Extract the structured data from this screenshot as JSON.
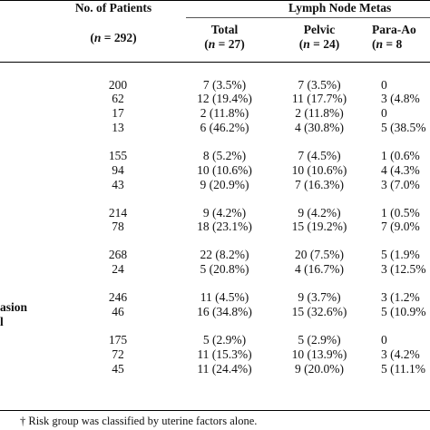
{
  "header": {
    "patients_title": "No. of Patients",
    "patients_n": "(n = 292)",
    "lnm_title": "Lymph Node Metas",
    "cols": [
      {
        "title": "Total",
        "n": "(n = 27)"
      },
      {
        "title": "Pelvic",
        "n": "(n = 24)"
      },
      {
        "title": "Para-Ao",
        "n": "(n = 8"
      }
    ]
  },
  "left_labels": [
    "asion",
    "l"
  ],
  "rows": [
    {
      "n": "200",
      "total": "7 (3.5%)",
      "pelvic": "7 (3.5%)",
      "para": "0"
    },
    {
      "n": "62",
      "total": "12 (19.4%)",
      "pelvic": "11 (17.7%)",
      "para": "3 (4.8%"
    },
    {
      "n": "17",
      "total": "2 (11.8%)",
      "pelvic": "2 (11.8%)",
      "para": "0"
    },
    {
      "n": "13",
      "total": "6 (46.2%)",
      "pelvic": "4 (30.8%)",
      "para": "5 (38.5%"
    },
    {
      "n": "155",
      "total": "8 (5.2%)",
      "pelvic": "7 (4.5%)",
      "para": "1 (0.6%"
    },
    {
      "n": "94",
      "total": "10 (10.6%)",
      "pelvic": "10 (10.6%)",
      "para": "4 (4.3%"
    },
    {
      "n": "43",
      "total": "9 (20.9%)",
      "pelvic": "7 (16.3%)",
      "para": "3 (7.0%"
    },
    {
      "n": "214",
      "total": "9 (4.2%)",
      "pelvic": "9 (4.2%)",
      "para": "1 (0.5%"
    },
    {
      "n": "78",
      "total": "18 (23.1%)",
      "pelvic": "15 (19.2%)",
      "para": "7 (9.0%"
    },
    {
      "n": "268",
      "total": "22 (8.2%)",
      "pelvic": "20 (7.5%)",
      "para": "5 (1.9%"
    },
    {
      "n": "24",
      "total": "5 (20.8%)",
      "pelvic": "4 (16.7%)",
      "para": "3 (12.5%"
    },
    {
      "n": "246",
      "total": "11 (4.5%)",
      "pelvic": "9 (3.7%)",
      "para": "3 (1.2%"
    },
    {
      "n": "46",
      "total": "16 (34.8%)",
      "pelvic": "15 (32.6%)",
      "para": "5 (10.9%"
    },
    {
      "n": "175",
      "total": "5 (2.9%)",
      "pelvic": "5 (2.9%)",
      "para": "0"
    },
    {
      "n": "72",
      "total": "11 (15.3%)",
      "pelvic": "10 (13.9%)",
      "para": "3 (4.2%"
    },
    {
      "n": "45",
      "total": "11 (24.4%)",
      "pelvic": "9 (20.0%)",
      "para": "5 (11.1%"
    }
  ],
  "footnote": "† Risk group was classified by uterine factors alone."
}
